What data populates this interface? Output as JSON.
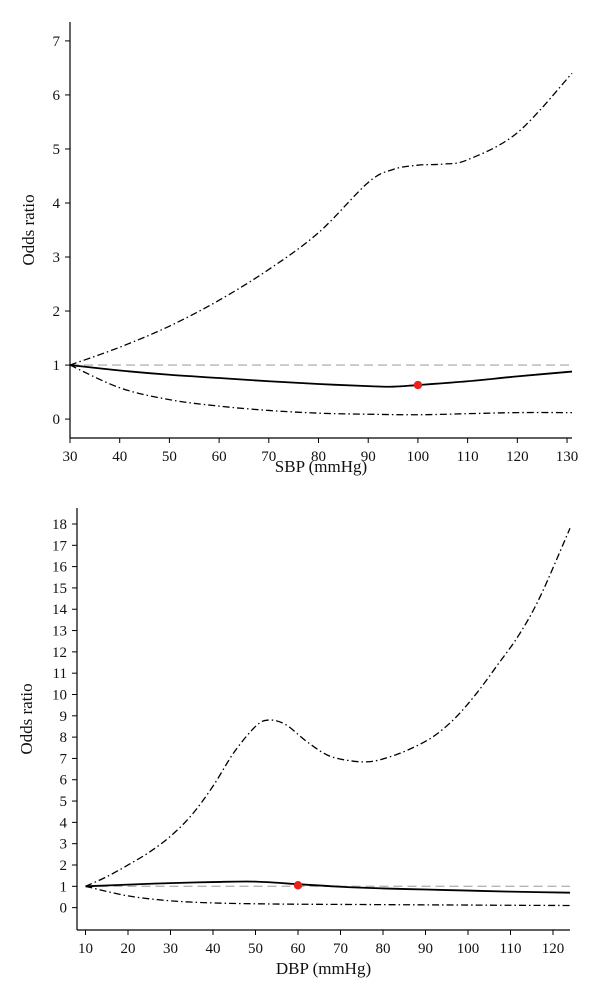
{
  "chart_data": [
    {
      "type": "line",
      "xlabel": "SBP (mmHg)",
      "ylabel": "Odds ratio",
      "xlim": [
        30,
        131
      ],
      "ylim": [
        -0.35,
        7.35
      ],
      "x_ticks": [
        30,
        40,
        50,
        60,
        70,
        80,
        90,
        100,
        110,
        120,
        130
      ],
      "y_ticks": [
        0,
        1,
        2,
        3,
        4,
        5,
        6,
        7
      ],
      "reference_line": {
        "y": 1,
        "style": "dashed",
        "color": "#b5b5b5"
      },
      "reference_point": {
        "x": 100,
        "y": 0.63,
        "color": "#e8231f"
      },
      "series": [
        {
          "style": "solid",
          "x": [
            30,
            40,
            50,
            60,
            70,
            80,
            90,
            95,
            100,
            110,
            120,
            131
          ],
          "y": [
            1.0,
            0.9,
            0.82,
            0.76,
            0.7,
            0.65,
            0.61,
            0.6,
            0.63,
            0.7,
            0.79,
            0.88
          ]
        },
        {
          "style": "dashdot",
          "x": [
            30,
            40,
            50,
            60,
            70,
            80,
            90,
            95,
            100,
            105,
            110,
            120,
            131
          ],
          "y": [
            1.0,
            1.33,
            1.72,
            2.2,
            2.77,
            3.45,
            4.38,
            4.62,
            4.7,
            4.72,
            4.8,
            5.3,
            6.4
          ]
        },
        {
          "style": "dashdot",
          "x": [
            30,
            40,
            50,
            60,
            70,
            80,
            90,
            100,
            110,
            120,
            131
          ],
          "y": [
            1.0,
            0.58,
            0.36,
            0.24,
            0.16,
            0.11,
            0.09,
            0.08,
            0.1,
            0.12,
            0.12
          ]
        }
      ]
    },
    {
      "type": "line",
      "xlabel": "DBP (mmHg)",
      "ylabel": "Odds ratio",
      "xlim": [
        8,
        124
      ],
      "ylim": [
        -1.05,
        18.75
      ],
      "x_ticks": [
        10,
        20,
        30,
        40,
        50,
        60,
        70,
        80,
        90,
        100,
        110,
        120
      ],
      "y_ticks": [
        0,
        1,
        2,
        3,
        4,
        5,
        6,
        7,
        8,
        9,
        10,
        11,
        12,
        13,
        14,
        15,
        16,
        17,
        18
      ],
      "reference_line": {
        "y": 1,
        "style": "dashed",
        "color": "#b5b5b5"
      },
      "reference_point": {
        "x": 60,
        "y": 1.05,
        "color": "#e8231f"
      },
      "series": [
        {
          "style": "solid",
          "x": [
            10,
            20,
            30,
            40,
            50,
            60,
            70,
            80,
            90,
            100,
            110,
            124
          ],
          "y": [
            1.0,
            1.08,
            1.15,
            1.2,
            1.22,
            1.1,
            0.98,
            0.9,
            0.85,
            0.8,
            0.75,
            0.7
          ]
        },
        {
          "style": "dashdot",
          "x": [
            10,
            15,
            20,
            25,
            30,
            35,
            40,
            45,
            50,
            53,
            57,
            62,
            67,
            72,
            77,
            82,
            87,
            92,
            97,
            102,
            107,
            112,
            117,
            124
          ],
          "y": [
            1.0,
            1.45,
            2.0,
            2.6,
            3.35,
            4.35,
            5.7,
            7.3,
            8.5,
            8.8,
            8.6,
            7.8,
            7.15,
            6.9,
            6.85,
            7.1,
            7.5,
            8.05,
            8.9,
            10.05,
            11.4,
            12.8,
            14.6,
            17.8
          ]
        },
        {
          "style": "dashdot",
          "x": [
            10,
            20,
            30,
            40,
            50,
            60,
            70,
            80,
            90,
            100,
            110,
            124
          ],
          "y": [
            1.0,
            0.55,
            0.32,
            0.22,
            0.18,
            0.16,
            0.15,
            0.14,
            0.13,
            0.12,
            0.11,
            0.1
          ]
        }
      ]
    }
  ]
}
